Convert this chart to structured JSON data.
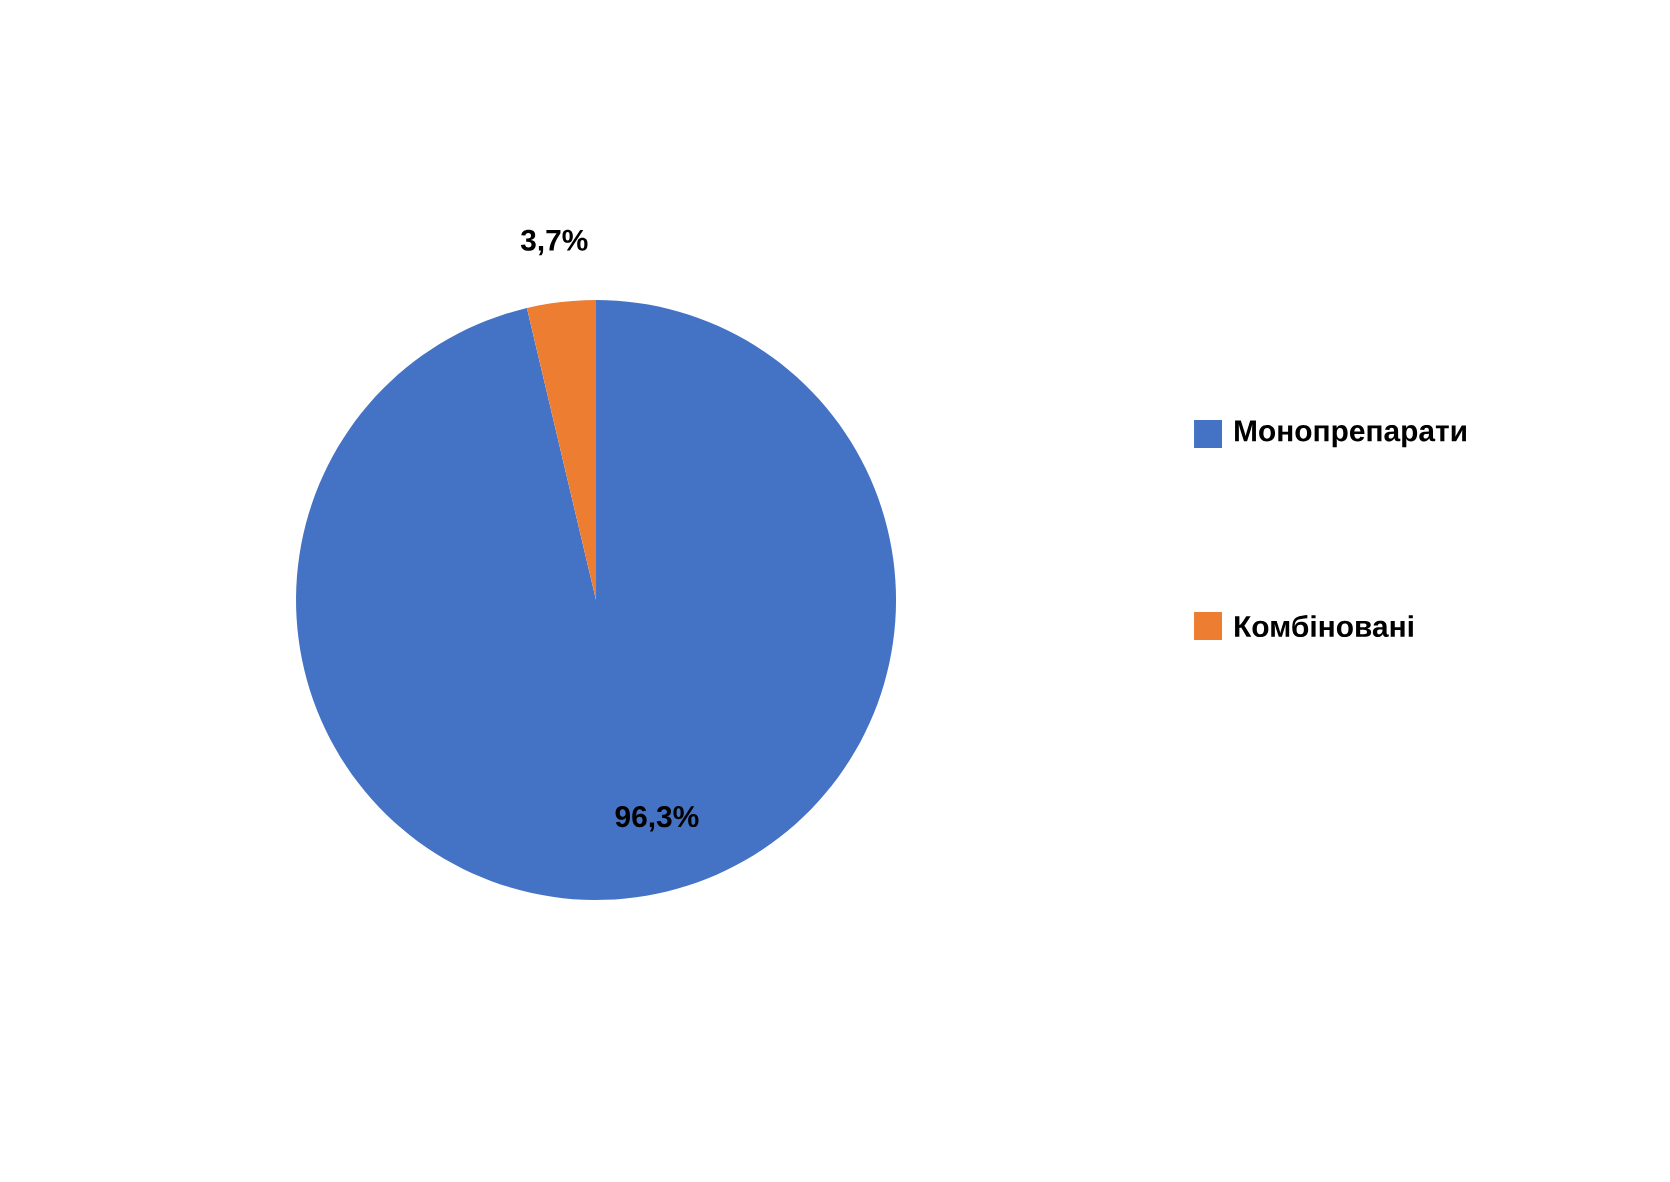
{
  "chart_data": {
    "type": "pie",
    "categories": [
      "Монопрепарати",
      "Комбіновані"
    ],
    "values": [
      96.3,
      3.7
    ],
    "colors": [
      "#4472c4",
      "#ed7d31"
    ],
    "value_labels": [
      "96,3%",
      "3,7%"
    ],
    "legend": "right"
  }
}
